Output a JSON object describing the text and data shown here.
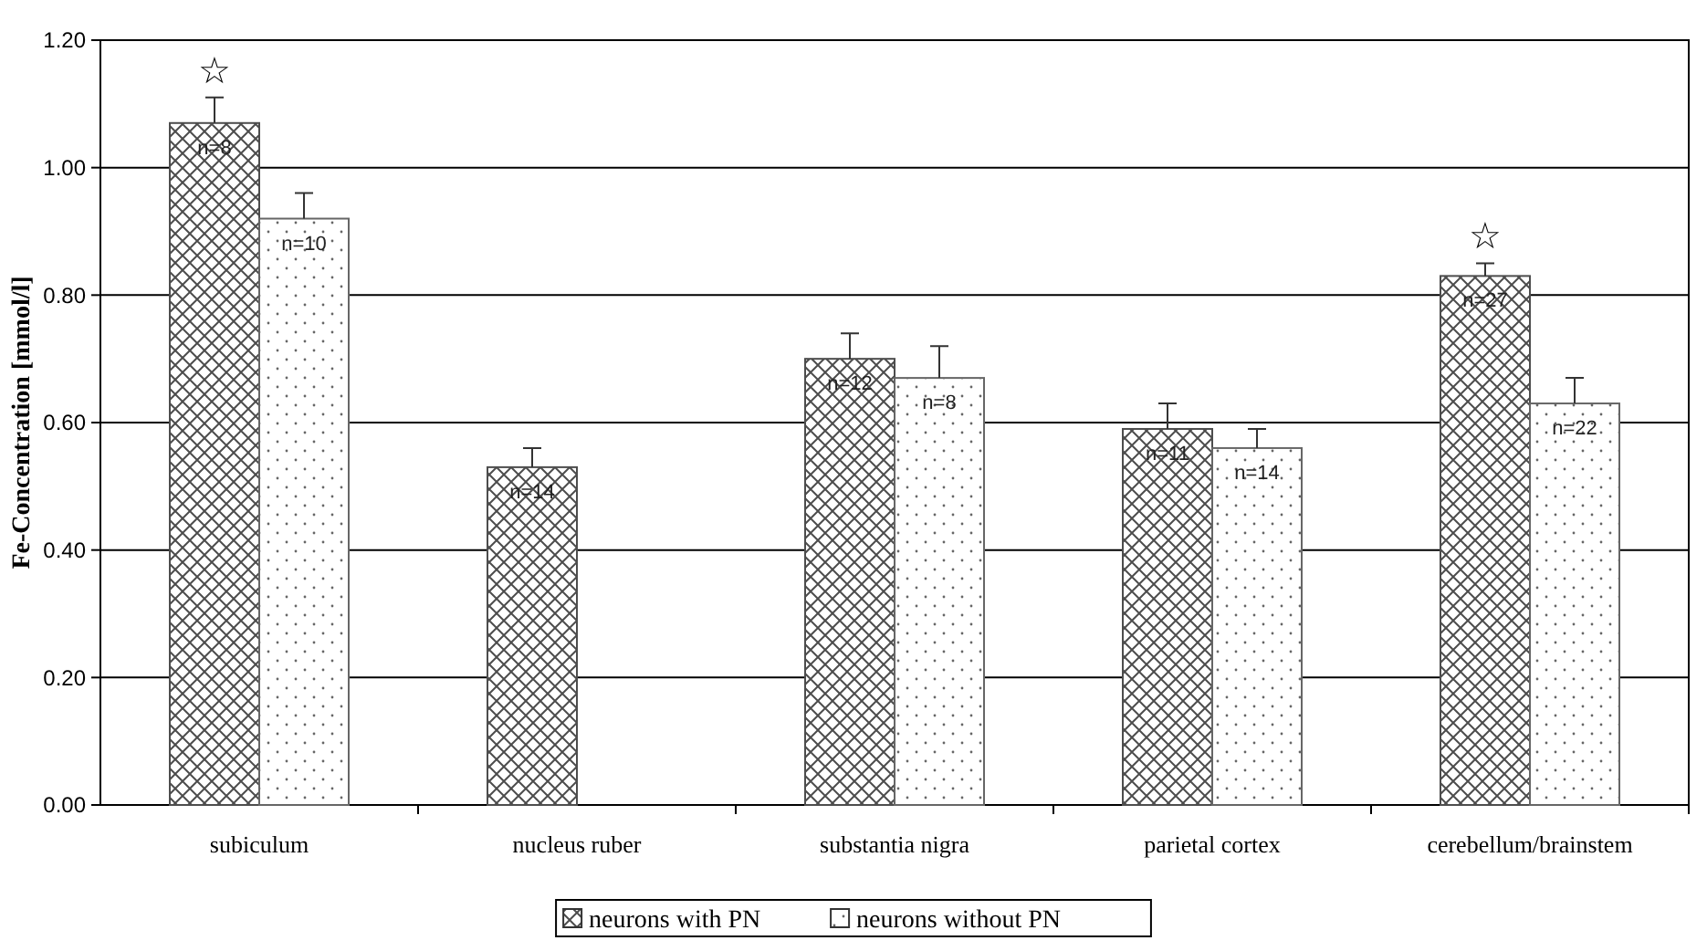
{
  "chart_data": {
    "type": "bar",
    "ylabel": "Fe-Concentration [mmol/l]",
    "categories": [
      "subiculum",
      "nucleus ruber",
      "substantia nigra",
      "parietal cortex",
      "cerebellum/brainstem"
    ],
    "series": [
      {
        "name": "neurons with PN",
        "color": "#4d4d4d",
        "values": [
          1.07,
          0.53,
          0.7,
          0.59,
          0.83
        ],
        "errors": [
          [
            1.07,
            1.11
          ],
          [
            0.53,
            0.56
          ],
          [
            0.7,
            0.74
          ],
          [
            0.59,
            0.63
          ],
          [
            0.83,
            0.85
          ]
        ]
      },
      {
        "name": "neurons without PN",
        "color": "#666666",
        "values": [
          0.92,
          null,
          0.67,
          0.56,
          0.63
        ],
        "errors": [
          [
            0.92,
            0.96
          ],
          null,
          [
            0.67,
            0.72
          ],
          [
            0.56,
            0.59
          ],
          [
            0.63,
            0.67
          ]
        ]
      }
    ],
    "ylim": [
      0,
      1.2
    ],
    "yticks": [
      {
        "value": 0,
        "label": "0.00"
      },
      {
        "value": 0.2,
        "label": "0.20"
      },
      {
        "value": 0.4,
        "label": "0.40"
      },
      {
        "value": 0.6,
        "label": "0.60"
      },
      {
        "value": 0.8,
        "label": "0.80"
      },
      {
        "value": 1.0,
        "label": "1.00"
      },
      {
        "value": 1.2,
        "label": "1.20"
      }
    ],
    "grid": "y",
    "legend": "bottom",
    "annotations": [
      {
        "text": "n=8",
        "x": "subiculum",
        "y": 1.07
      },
      {
        "text": "n=10",
        "x": "subiculum",
        "y": 0.92
      },
      {
        "text": "n=14",
        "x": "nucleus ruber",
        "y": 0.53
      },
      {
        "text": "n=12",
        "x": "substantia nigra",
        "y": 0.7
      },
      {
        "text": "n=8",
        "x": "substantia nigra",
        "y": 0.67
      },
      {
        "text": "n=11",
        "x": "parietal cortex",
        "y": 0.59
      },
      {
        "text": "n=14",
        "x": "parietal cortex",
        "y": 0.56
      },
      {
        "text": "n=27",
        "x": "cerebellum/brainstem",
        "y": 0.83
      },
      {
        "text": "n=22",
        "x": "cerebellum/brainstem",
        "y": 0.63
      },
      "☆",
      "☆"
    ]
  }
}
